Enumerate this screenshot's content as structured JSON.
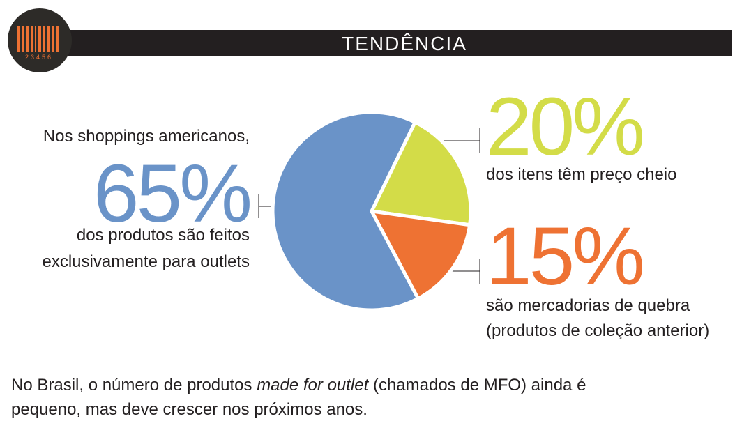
{
  "chart_data": {
    "type": "pie",
    "title": "TENDÊNCIA",
    "logo_digits": "23456",
    "intro": "Nos shoppings americanos,",
    "values": [
      65,
      20,
      15
    ],
    "value_labels": [
      "65%",
      "20%",
      "15%"
    ],
    "colors": [
      "#6a93c8",
      "#d3dc48",
      "#ee7233"
    ],
    "descriptions": [
      [
        "dos produtos são feitos",
        "exclusivamente para outlets"
      ],
      [
        "dos itens têm preço cheio"
      ],
      [
        "são mercadorias de quebra",
        "(produtos de coleção anterior)"
      ]
    ],
    "footer": [
      [
        "No Brasil, o número de produtos ",
        "made for outlet",
        " (chamados de MFO) ainda é"
      ],
      [
        "pequeno, mas deve crescer nos próximos anos."
      ]
    ]
  }
}
